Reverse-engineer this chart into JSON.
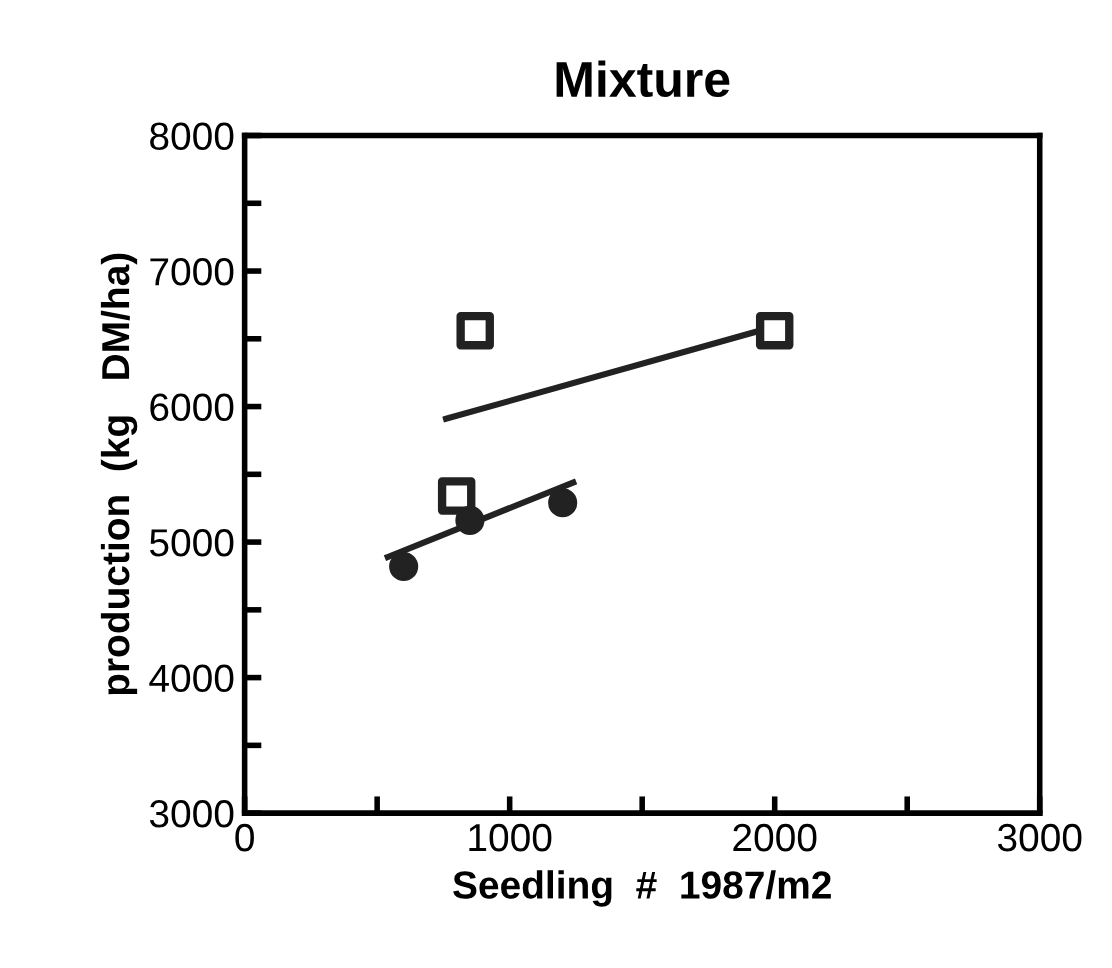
{
  "chart_data": {
    "type": "scatter",
    "title": "Mixture",
    "xlabel": "Seedling  #  1987/m2",
    "ylabel": "production  (kg   DM/ha)",
    "xlim": [
      0,
      3000
    ],
    "xticks": [
      0,
      {
        "value": 500,
        "label": null
      },
      1000,
      {
        "value": 1500,
        "label": null
      },
      2000,
      {
        "value": 2500,
        "label": null
      },
      3000
    ],
    "ylim": [
      3000,
      8000
    ],
    "yticks": [
      3000,
      {
        "value": 3500,
        "label": null
      },
      4000,
      {
        "value": 4500,
        "label": null
      },
      5000,
      {
        "value": 5500,
        "label": null
      },
      6000,
      {
        "value": 6500,
        "label": null
      },
      7000,
      {
        "value": 7500,
        "label": null
      },
      8000
    ],
    "grid": false,
    "series": [
      {
        "marker": "square",
        "color": "#222222",
        "x": [
          870,
          2000,
          800
        ],
        "values": [
          6560,
          6560,
          5340
        ]
      },
      {
        "marker": "circle",
        "color": "#222222",
        "x": [
          600,
          850,
          1200
        ],
        "values": [
          4820,
          5160,
          5290
        ]
      },
      {
        "type": "line",
        "marker": "none",
        "line_style": "solid",
        "color": "#222222",
        "x": [
          760,
          1980
        ],
        "values": [
          5910,
          6580
        ]
      },
      {
        "type": "line",
        "marker": "none",
        "line_style": "solid",
        "color": "#222222",
        "x": [
          540,
          1240
        ],
        "values": [
          4890,
          5440
        ]
      }
    ]
  }
}
